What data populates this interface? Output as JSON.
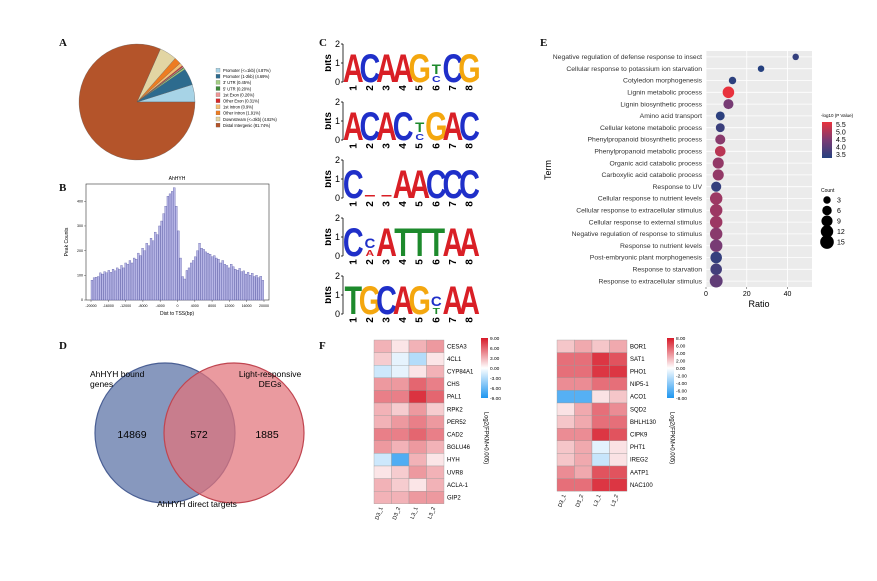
{
  "labels": {
    "A": "A",
    "B": "B",
    "C": "C",
    "D": "D",
    "E": "E",
    "F": "F"
  },
  "panelA": {
    "type": "pie",
    "slices": [
      {
        "label": "Promoter (<=1kb) (4.87%)",
        "value": 4.87,
        "color": "#a7d3e6"
      },
      {
        "label": "Promoter (1-2kb) (4.69%)",
        "value": 4.69,
        "color": "#2d6b8e"
      },
      {
        "label": "3' UTR (0.45%)",
        "value": 0.45,
        "color": "#a4cf84"
      },
      {
        "label": "5' UTR (0.20%)",
        "value": 0.2,
        "color": "#3e8a3a"
      },
      {
        "label": "1st Exon (0.26%)",
        "value": 0.26,
        "color": "#ef9796"
      },
      {
        "label": "Other Exon (0.31%)",
        "value": 0.31,
        "color": "#d7282a"
      },
      {
        "label": "1st Intron (0.9%)",
        "value": 0.9,
        "color": "#f4bf74"
      },
      {
        "label": "Other Intron (1.91%)",
        "value": 1.91,
        "color": "#ed7c22"
      },
      {
        "label": "Downstream (<=3kb) (4.82%)",
        "value": 4.82,
        "color": "#e2d5a3"
      },
      {
        "label": "Distal Intergenic (81.74%)",
        "value": 81.74,
        "color": "#b4542a"
      }
    ]
  },
  "panelB": {
    "type": "bar",
    "title": "AhHYH",
    "xlabel": "Dist to TSS(bp)",
    "ylabel": "Peak Counts",
    "xticks": [
      "-20000",
      "-16000",
      "-12000",
      "-8000",
      "-4000",
      "0",
      "4000",
      "8000",
      "12000",
      "16000",
      "20000"
    ],
    "yticks": [
      "0",
      "100",
      "200",
      "300",
      "400"
    ],
    "ylim": [
      0,
      470
    ],
    "xlim": [
      -20000,
      20000
    ],
    "values": [
      80,
      90,
      92,
      95,
      110,
      105,
      115,
      110,
      120,
      112,
      125,
      118,
      130,
      124,
      140,
      130,
      150,
      145,
      160,
      150,
      170,
      165,
      190,
      180,
      210,
      200,
      230,
      220,
      250,
      240,
      275,
      265,
      300,
      320,
      350,
      380,
      420,
      430,
      440,
      455,
      380,
      280,
      170,
      95,
      85,
      120,
      130,
      150,
      160,
      175,
      200,
      230,
      210,
      205,
      195,
      190,
      185,
      175,
      180,
      170,
      165,
      150,
      160,
      145,
      140,
      130,
      145,
      135,
      125,
      120,
      128,
      115,
      118,
      105,
      112,
      100,
      108,
      95,
      100,
      90,
      96,
      80
    ]
  },
  "panelC": {
    "axis_label": "bits",
    "ticks": [
      "0",
      "1",
      "2"
    ],
    "positions": [
      "1",
      "2",
      "3",
      "4",
      "5",
      "6",
      "7",
      "8"
    ],
    "motifs": [
      {
        "letters": [
          "A",
          "C",
          "A",
          "A",
          "G",
          "TC",
          "C",
          "G"
        ]
      },
      {
        "letters": [
          "A",
          "C",
          "A",
          "C",
          "TC",
          "G",
          "A",
          "C"
        ]
      },
      {
        "letters": [
          "C",
          "",
          "",
          "A",
          "A",
          "C",
          "C",
          "C"
        ]
      },
      {
        "letters": [
          "C",
          "CA",
          "A",
          "T",
          "T",
          "T",
          "A",
          "A"
        ]
      },
      {
        "letters": [
          "T",
          "G",
          "C",
          "A",
          "G",
          "CT",
          "A",
          "A"
        ]
      }
    ]
  },
  "panelD": {
    "left_label": [
      "AhHYH bound",
      "genes"
    ],
    "right_label": [
      "Light-responsive",
      "DEGs"
    ],
    "left_only": "14869",
    "overlap": "572",
    "right_only": "1885",
    "bottom_label": "AhHYH direct targets"
  },
  "panelE": {
    "type": "scatter",
    "xlabel": "Ratio",
    "ylabel": "Term",
    "xticks": [
      "0",
      "20",
      "40"
    ],
    "xlim": [
      0,
      52
    ],
    "color_title": "-log10 (P Value)",
    "color_ticks": [
      "5.5",
      "5.0",
      "4.5",
      "4.0",
      "3.5"
    ],
    "size_title": "Count",
    "size_ticks": [
      "3",
      "6",
      "9",
      "12",
      "15"
    ],
    "terms": [
      {
        "name": "Negative regulation of defense response to insect",
        "x": 44,
        "count": 2,
        "p": 3.5
      },
      {
        "name": "Cellular response to potassium ion starvation",
        "x": 27,
        "count": 2,
        "p": 3.3
      },
      {
        "name": "Cotyledon morphogenesis",
        "x": 13,
        "count": 3,
        "p": 3.4
      },
      {
        "name": "Lignin metabolic process",
        "x": 11,
        "count": 10,
        "p": 5.6
      },
      {
        "name": "Lignin biosynthetic process",
        "x": 11,
        "count": 7,
        "p": 4.4
      },
      {
        "name": "Amino acid transport",
        "x": 7,
        "count": 5,
        "p": 3.4
      },
      {
        "name": "Cellular ketone metabolic process",
        "x": 7,
        "count": 5,
        "p": 3.6
      },
      {
        "name": "Phenylpropanoid biosynthetic process",
        "x": 7,
        "count": 7,
        "p": 4.6
      },
      {
        "name": "Phenylpropanoid metabolic process",
        "x": 7,
        "count": 8,
        "p": 5.1
      },
      {
        "name": "Organic acid catabolic process",
        "x": 6,
        "count": 9,
        "p": 4.7
      },
      {
        "name": "Carboxylic acid catabolic process",
        "x": 6,
        "count": 9,
        "p": 4.7
      },
      {
        "name": "Response to UV",
        "x": 5,
        "count": 7,
        "p": 3.5
      },
      {
        "name": "Cellular response to nutrient levels",
        "x": 5,
        "count": 12,
        "p": 4.8
      },
      {
        "name": "Cellular response to extracellular stimulus",
        "x": 5,
        "count": 12,
        "p": 4.8
      },
      {
        "name": "Cellular response to external stimulus",
        "x": 5,
        "count": 12,
        "p": 4.8
      },
      {
        "name": "Negative regulation of response to stimulus",
        "x": 5,
        "count": 12,
        "p": 4.6
      },
      {
        "name": "Response to nutrient levels",
        "x": 5,
        "count": 12,
        "p": 4.4
      },
      {
        "name": "Post-embryonic plant morphogenesis",
        "x": 5,
        "count": 10,
        "p": 3.5
      },
      {
        "name": "Response to starvation",
        "x": 5,
        "count": 10,
        "p": 3.7
      },
      {
        "name": "Response to extracellular stimulus",
        "x": 5,
        "count": 13,
        "p": 4.1
      }
    ]
  },
  "panelF": {
    "cols": [
      "D3_1",
      "D3_2",
      "L3_1",
      "L3_2"
    ],
    "legend_title": "Log2(FPKM+0.005)",
    "left": {
      "legend_ticks": [
        "9.00",
        "6.00",
        "3.00",
        "0.00",
        "-3.00",
        "-6.00",
        "-9.00"
      ],
      "genes": [
        "CESA3",
        "4CL1",
        "CYP84A1",
        "CHS",
        "PAL1",
        "RPK2",
        "PER52",
        "CAD2",
        "BGLU46",
        "HYH",
        "UVR8",
        "ACLA-1",
        "GIP2"
      ],
      "values": [
        [
          3,
          1,
          3,
          4
        ],
        [
          2,
          -1,
          -3,
          1
        ],
        [
          -2,
          -1,
          1,
          3
        ],
        [
          4,
          4,
          6,
          5
        ],
        [
          5,
          5,
          8,
          6
        ],
        [
          3,
          2,
          4,
          2
        ],
        [
          3,
          4,
          5,
          4
        ],
        [
          5,
          5,
          6,
          5
        ],
        [
          4,
          3,
          4,
          3
        ],
        [
          -2,
          -7,
          3,
          1
        ],
        [
          1,
          2,
          4,
          3
        ],
        [
          3,
          2,
          1,
          3
        ],
        [
          3,
          3,
          4,
          4
        ]
      ]
    },
    "right": {
      "legend_ticks": [
        "8.00",
        "6.00",
        "4.00",
        "2.00",
        "0.00",
        "-2.00",
        "-4.00",
        "-6.00",
        "-8.00"
      ],
      "genes": [
        "BOR1",
        "SAT1",
        "PHO1",
        "NIP5-1",
        "ACO1",
        "SQD2",
        "BHLH130",
        "CIPK9",
        "PHT1",
        "IREG2",
        "AATP1",
        "NAC100"
      ],
      "values": [
        [
          2,
          3,
          2,
          3
        ],
        [
          5,
          5,
          7,
          6
        ],
        [
          5,
          5,
          7,
          7
        ],
        [
          4,
          4,
          5,
          5
        ],
        [
          -6,
          -6,
          1,
          2
        ],
        [
          1,
          3,
          5,
          4
        ],
        [
          2,
          3,
          5,
          5
        ],
        [
          4,
          4,
          7,
          6
        ],
        [
          2,
          3,
          -1,
          1
        ],
        [
          2,
          3,
          -2,
          1
        ],
        [
          4,
          3,
          6,
          6
        ],
        [
          5,
          5,
          7,
          7
        ]
      ]
    }
  }
}
